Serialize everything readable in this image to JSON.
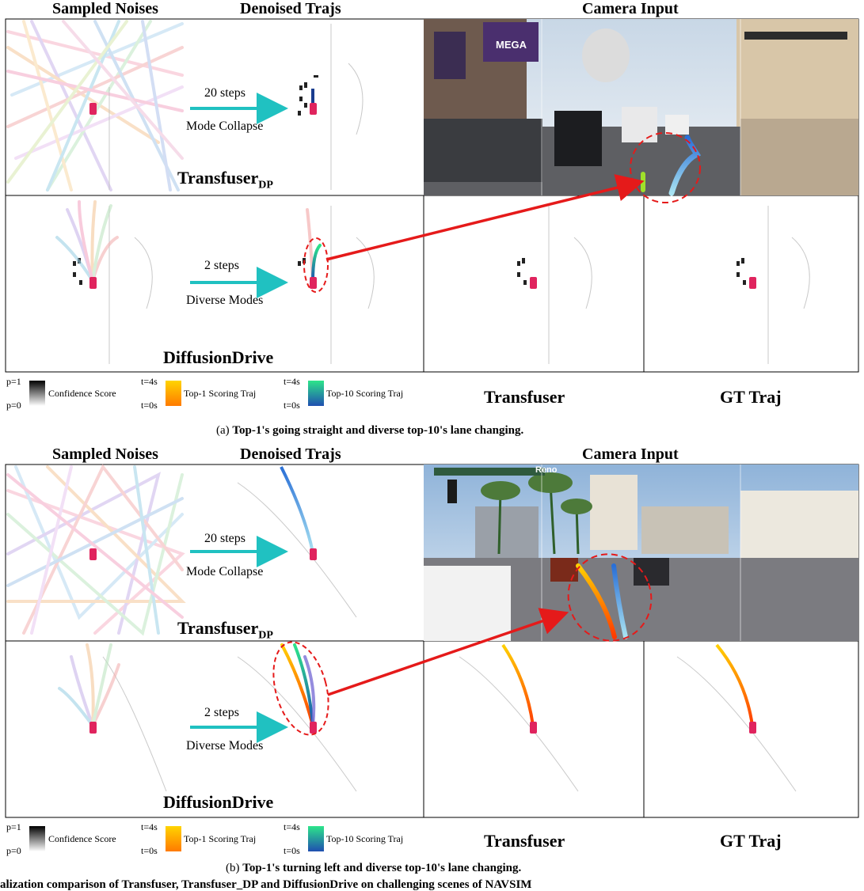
{
  "figure_a": {
    "headers": {
      "noise": "Sampled Noises",
      "denoised": "Denoised Trajs",
      "camera": "Camera Input"
    },
    "row1": {
      "steps": "20 steps",
      "mode": "Mode Collapse",
      "model": "Transfuser",
      "model_sub": "DP"
    },
    "row2": {
      "steps": "2 steps",
      "mode": "Diverse Modes",
      "model": "DiffusionDrive"
    },
    "legend": {
      "p1": "p=1",
      "p0": "p=0",
      "conf": "Confidence Score",
      "t4a": "t=4s",
      "t0a": "t=0s",
      "top1": "Top-1 Scoring Traj",
      "t4b": "t=4s",
      "t0b": "t=0s",
      "top10": "Top-10 Scoring Traj",
      "transfuser": "Transfuser",
      "gt": "GT Traj"
    },
    "caption_prefix": "(a) ",
    "caption": "Top-1's going straight and diverse top-10's lane changing."
  },
  "figure_b": {
    "headers": {
      "noise": "Sampled Noises",
      "denoised": "Denoised Trajs",
      "camera": "Camera Input"
    },
    "row1": {
      "steps": "20 steps",
      "mode": "Mode Collapse",
      "model": "Transfuser",
      "model_sub": "DP"
    },
    "row2": {
      "steps": "2 steps",
      "mode": "Diverse Modes",
      "model": "DiffusionDrive"
    },
    "legend": {
      "p1": "p=1",
      "p0": "p=0",
      "conf": "Confidence Score",
      "t4a": "t=4s",
      "t0a": "t=0s",
      "top1": "Top-1 Scoring Traj",
      "t4b": "t=4s",
      "t0b": "t=0s",
      "top10": "Top-10 Scoring Traj",
      "transfuser": "Transfuser",
      "gt": "GT Traj"
    },
    "caption_prefix": "(b) ",
    "caption": "Top-1's turning left and diverse top-10's lane changing.",
    "camera_sign": "Reno"
  },
  "camera_a_sign": "MEGA",
  "bottom_cut_text": "alization comparison of Transfuser, Transfuser_DP and DiffusionDrive on challenging scenes of NAVSIM"
}
